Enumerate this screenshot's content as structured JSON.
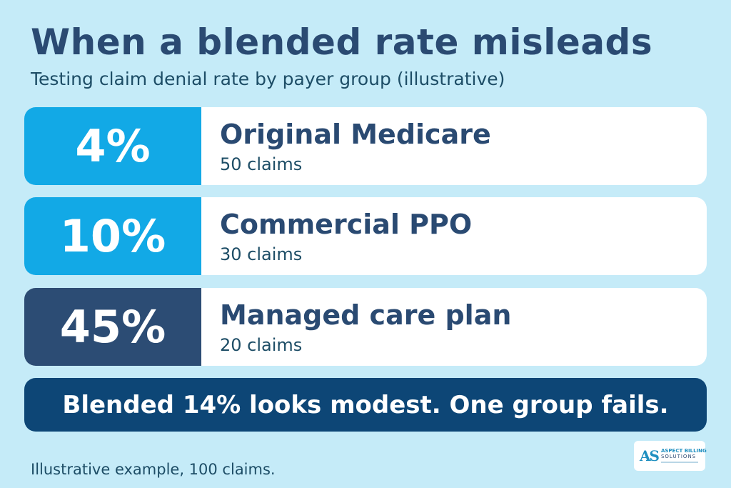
{
  "header": {
    "title": "When a blended rate misleads",
    "subtitle": "Testing claim denial rate by payer group (illustrative)"
  },
  "groups": [
    {
      "rate": "4%",
      "name": "Original Medicare",
      "claims": "50 claims",
      "color": "#12a9e6"
    },
    {
      "rate": "10%",
      "name": "Commercial PPO",
      "claims": "30 claims",
      "color": "#12a9e6"
    },
    {
      "rate": "45%",
      "name": "Managed care plan",
      "claims": "20 claims",
      "color": "#2c4c74"
    }
  ],
  "banner": {
    "text": "Blended 14% looks modest. One group fails."
  },
  "footnote": "Illustrative example, 100 claims.",
  "logo": {
    "mark": "AS",
    "line1": "ASPECT BILLING",
    "line2": "SOLUTIONS"
  },
  "colors": {
    "background": "#c5ebf8",
    "title": "#2a4a72",
    "banner": "#0d4676"
  }
}
